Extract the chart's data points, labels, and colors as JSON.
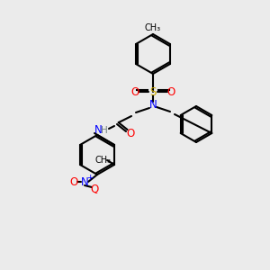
{
  "background_color": "#ebebeb",
  "bond_color": "#000000",
  "bond_width": 1.5,
  "atom_colors": {
    "N": "#0000ff",
    "O": "#ff0000",
    "S": "#ccaa00",
    "H": "#808080",
    "C": "#000000"
  },
  "font_size": 7.5
}
